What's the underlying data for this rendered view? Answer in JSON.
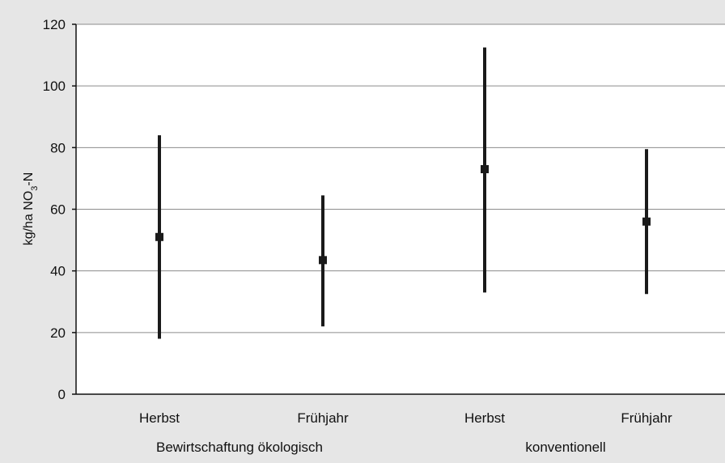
{
  "chart_data": {
    "type": "errorbar",
    "ylabel_main": "kg/ha NO",
    "ylabel_sub": "3",
    "ylabel_tail": "-N",
    "ylim": [
      0,
      120
    ],
    "yticks": [
      0,
      20,
      40,
      60,
      80,
      100,
      120
    ],
    "grid": true,
    "categories": [
      "Herbst",
      "Frühjahr",
      "Herbst",
      "Frühjahr"
    ],
    "groups": [
      "Bewirtschaftung ökologisch",
      "konventionell"
    ],
    "points": [
      {
        "category": "Herbst",
        "group": "Bewirtschaftung ökologisch",
        "mean": 51,
        "low": 18,
        "high": 84
      },
      {
        "category": "Frühjahr",
        "group": "Bewirtschaftung ökologisch",
        "mean": 43.5,
        "low": 22,
        "high": 64.5
      },
      {
        "category": "Herbst",
        "group": "konventionell",
        "mean": 73,
        "low": 33,
        "high": 112.5
      },
      {
        "category": "Frühjahr",
        "group": "konventionell",
        "mean": 56,
        "low": 32.5,
        "high": 79.5
      }
    ]
  },
  "colors": {
    "background": "#e6e6e6",
    "plot_area": "#ffffff",
    "gridline": "#8c8c8c",
    "series": "#1a1a1a"
  }
}
